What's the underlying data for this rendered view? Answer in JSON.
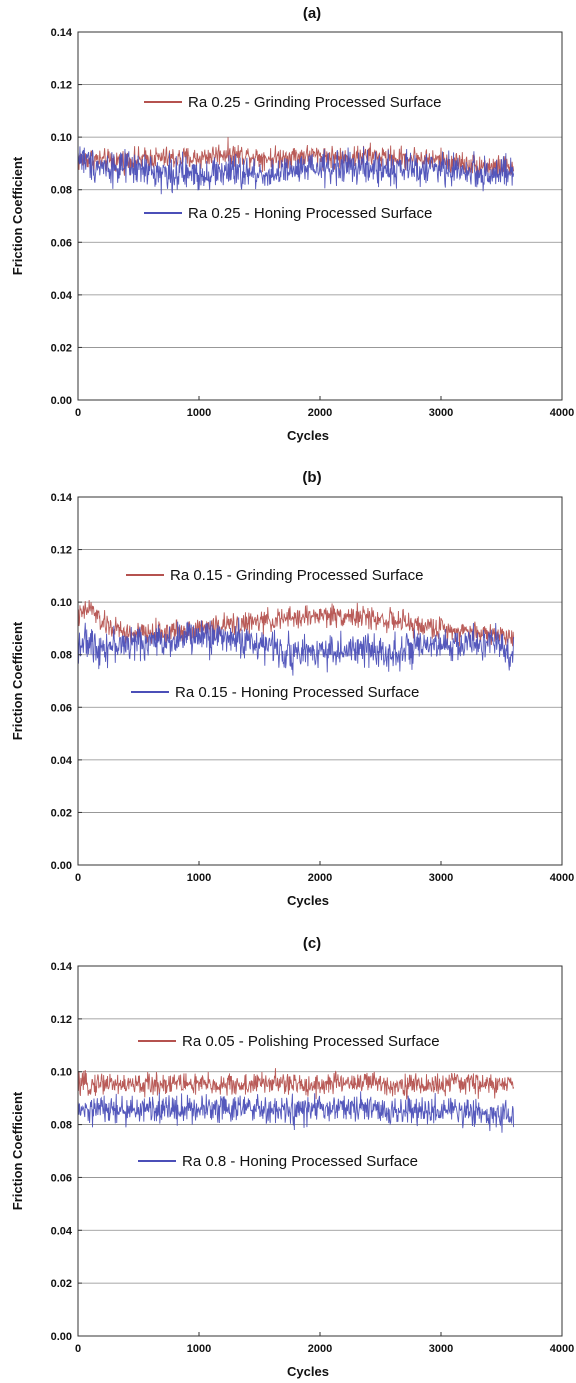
{
  "chart_data": [
    {
      "type": "line",
      "panel_label": "(a)",
      "xlabel": "Cycles",
      "ylabel": "Friction Coefficient",
      "xlim": [
        0,
        4000
      ],
      "ylim": [
        0,
        0.14
      ],
      "x_ticks": [
        "0",
        "1000",
        "2000",
        "3000",
        "4000"
      ],
      "y_ticks": [
        "0.00",
        "0.02",
        "0.04",
        "0.06",
        "0.08",
        "0.10",
        "0.12",
        "0.14"
      ],
      "grid": "horizontal",
      "series": [
        {
          "name": "Ra 0.25 - Grinding Processed Surface",
          "color": "#b5524f",
          "x": [
            0,
            100,
            200,
            400,
            600,
            800,
            1000,
            1200,
            1400,
            1600,
            1800,
            2000,
            2200,
            2400,
            2600,
            2800,
            3000,
            3200,
            3400,
            3600
          ],
          "mean": [
            0.091,
            0.092,
            0.091,
            0.091,
            0.092,
            0.092,
            0.092,
            0.094,
            0.093,
            0.092,
            0.093,
            0.093,
            0.092,
            0.093,
            0.092,
            0.092,
            0.091,
            0.09,
            0.089,
            0.088
          ],
          "amplitude": 0.004
        },
        {
          "name": "Ra 0.25  - Honing Processed Surface",
          "color": "#4b4fb8",
          "x": [
            0,
            100,
            200,
            400,
            600,
            800,
            1000,
            1200,
            1400,
            1600,
            1800,
            2000,
            2200,
            2400,
            2600,
            2800,
            3000,
            3200,
            3400,
            3600
          ],
          "mean": [
            0.093,
            0.09,
            0.089,
            0.088,
            0.087,
            0.086,
            0.086,
            0.087,
            0.086,
            0.086,
            0.087,
            0.088,
            0.089,
            0.088,
            0.088,
            0.088,
            0.088,
            0.087,
            0.086,
            0.086
          ],
          "amplitude": 0.006
        }
      ]
    },
    {
      "type": "line",
      "panel_label": "(b)",
      "xlabel": "Cycles",
      "ylabel": "Friction Coefficient",
      "xlim": [
        0,
        4000
      ],
      "ylim": [
        0,
        0.14
      ],
      "x_ticks": [
        "0",
        "1000",
        "2000",
        "3000",
        "4000"
      ],
      "y_ticks": [
        "0.00",
        "0.02",
        "0.04",
        "0.06",
        "0.08",
        "0.10",
        "0.12",
        "0.14"
      ],
      "grid": "horizontal",
      "series": [
        {
          "name": "Ra 0.15 - Grinding Processed Surface",
          "color": "#b5524f",
          "x": [
            0,
            100,
            200,
            400,
            600,
            800,
            1000,
            1200,
            1400,
            1600,
            1800,
            2000,
            2200,
            2400,
            2600,
            2800,
            3000,
            3200,
            3400,
            3600
          ],
          "mean": [
            0.094,
            0.098,
            0.092,
            0.088,
            0.088,
            0.089,
            0.09,
            0.091,
            0.092,
            0.093,
            0.094,
            0.095,
            0.095,
            0.094,
            0.093,
            0.091,
            0.09,
            0.089,
            0.088,
            0.087
          ],
          "amplitude": 0.004
        },
        {
          "name": "Ra 0.15 - Honing Processed Surface",
          "color": "#4b4fb8",
          "x": [
            0,
            100,
            200,
            400,
            600,
            800,
            1000,
            1200,
            1400,
            1600,
            1800,
            2000,
            2200,
            2400,
            2600,
            2800,
            3000,
            3200,
            3400,
            3600
          ],
          "mean": [
            0.085,
            0.084,
            0.083,
            0.084,
            0.085,
            0.086,
            0.087,
            0.087,
            0.085,
            0.083,
            0.08,
            0.082,
            0.081,
            0.082,
            0.081,
            0.082,
            0.083,
            0.084,
            0.085,
            0.08
          ],
          "amplitude": 0.006
        }
      ]
    },
    {
      "type": "line",
      "panel_label": "(c)",
      "xlabel": "Cycles",
      "ylabel": "Friction Coefficient",
      "xlim": [
        0,
        4000
      ],
      "ylim": [
        0,
        0.14
      ],
      "x_ticks": [
        "0",
        "1000",
        "2000",
        "3000",
        "4000"
      ],
      "y_ticks": [
        "0.00",
        "0.02",
        "0.04",
        "0.06",
        "0.08",
        "0.10",
        "0.12",
        "0.14"
      ],
      "grid": "horizontal",
      "series": [
        {
          "name": "Ra 0.05 - Polishing Processed Surface",
          "color": "#b5524f",
          "x": [
            0,
            100,
            200,
            400,
            600,
            800,
            1000,
            1200,
            1400,
            1600,
            1800,
            2000,
            2200,
            2400,
            2600,
            2800,
            3000,
            3200,
            3400,
            3600
          ],
          "mean": [
            0.095,
            0.095,
            0.096,
            0.095,
            0.095,
            0.096,
            0.095,
            0.095,
            0.095,
            0.096,
            0.095,
            0.095,
            0.096,
            0.096,
            0.095,
            0.095,
            0.095,
            0.096,
            0.095,
            0.095
          ],
          "amplitude": 0.004
        },
        {
          "name": "Ra 0.8 - Honing Processed Surface",
          "color": "#4b4fb8",
          "x": [
            0,
            100,
            200,
            400,
            600,
            800,
            1000,
            1200,
            1400,
            1600,
            1800,
            2000,
            2200,
            2400,
            2600,
            2800,
            3000,
            3200,
            3400,
            3600
          ],
          "mean": [
            0.085,
            0.085,
            0.086,
            0.085,
            0.086,
            0.086,
            0.086,
            0.087,
            0.086,
            0.085,
            0.085,
            0.086,
            0.086,
            0.086,
            0.085,
            0.085,
            0.085,
            0.085,
            0.084,
            0.084
          ],
          "amplitude": 0.005
        }
      ]
    }
  ]
}
